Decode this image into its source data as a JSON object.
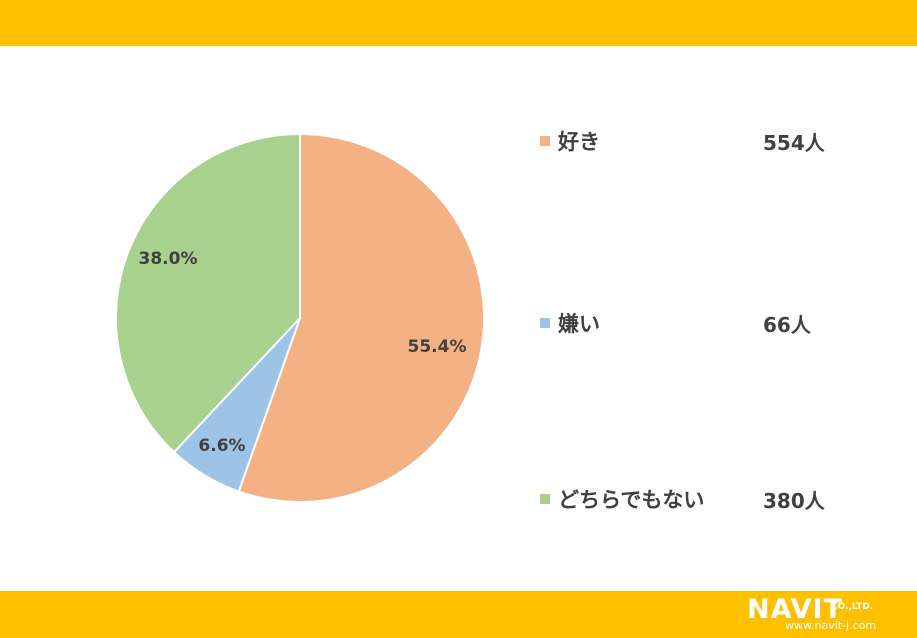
{
  "theme": {
    "bar_color": "#FFC000"
  },
  "chart_data": {
    "type": "pie",
    "title": "",
    "start": "12 o'clock, clockwise",
    "slices": [
      {
        "label": "好き",
        "percent": 55.4,
        "percent_label": "55.4%",
        "count": 554,
        "count_label": "554人",
        "color": "#F4B183"
      },
      {
        "label": "嫌い",
        "percent": 6.6,
        "percent_label": "6.6%",
        "count": 66,
        "count_label": "66人",
        "color": "#9DC3E6"
      },
      {
        "label": "どちらでもない",
        "percent": 38.0,
        "percent_label": "38.0%",
        "count": 380,
        "count_label": "380人",
        "color": "#A9D18E"
      }
    ],
    "legend_position": "right"
  },
  "logo": {
    "name": "NAVIT",
    "suffix": "CO.,LTD.",
    "url": "www.navit-j.com"
  }
}
